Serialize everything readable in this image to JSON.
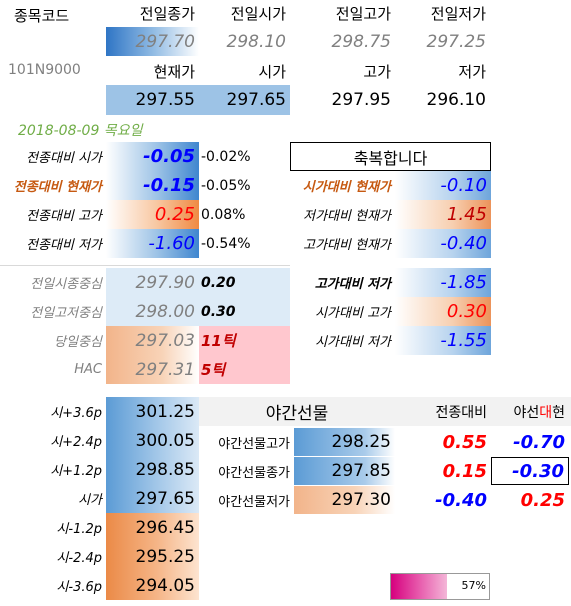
{
  "header": {
    "code_label": "종목코드",
    "code_value": "101N9000",
    "cols_prev": [
      "전일종가",
      "전일시가",
      "전일고가",
      "전일저가"
    ],
    "vals_prev": [
      "297.70",
      "298.10",
      "298.75",
      "297.25"
    ],
    "cols_now": [
      "현재가",
      "시가",
      "고가",
      "저가"
    ],
    "vals_now": [
      "297.55",
      "297.65",
      "297.95",
      "296.10"
    ]
  },
  "date_line": "2018-08-09  목요일",
  "left_stats": [
    {
      "label": "전종대비 시가",
      "value": "-0.05",
      "pct": "-0.02%"
    },
    {
      "label": "전종대비 현재가",
      "value": "-0.15",
      "pct": "-0.05%"
    },
    {
      "label": "전종대비 고가",
      "value": "0.25",
      "pct": "0.08%"
    },
    {
      "label": "전종대비 저가",
      "value": "-1.60",
      "pct": "-0.54%"
    }
  ],
  "greeting": "축복합니다",
  "right_stats": [
    {
      "label": "시가대비 현재가",
      "value": "-0.10"
    },
    {
      "label": "저가대비 현재가",
      "value": "1.45"
    },
    {
      "label": "고가대비 현재가",
      "value": "-0.40"
    },
    {
      "label": "고가대비 저가",
      "value": "-1.85"
    },
    {
      "label": "시가대비 고가",
      "value": "0.30"
    },
    {
      "label": "시가대비 저가",
      "value": "-1.55"
    }
  ],
  "mid_stats": [
    {
      "label": "전일시종중심",
      "value": "297.90",
      "extra": "0.20"
    },
    {
      "label": "전일고저중심",
      "value": "298.00",
      "extra": "0.30"
    },
    {
      "label": "당일중심",
      "value": "297.03",
      "extra": "11틱"
    },
    {
      "label": "HAC",
      "value": "297.31",
      "extra": "5틱"
    }
  ],
  "levels": [
    {
      "label": "시+3.6p",
      "value": "301.25"
    },
    {
      "label": "시+2.4p",
      "value": "300.05"
    },
    {
      "label": "시+1.2p",
      "value": "298.85"
    },
    {
      "label": "시가",
      "value": "297.65"
    },
    {
      "label": "시-1.2p",
      "value": "296.45"
    },
    {
      "label": "시-2.4p",
      "value": "295.25"
    },
    {
      "label": "시-3.6p",
      "value": "294.05"
    }
  ],
  "night": {
    "title": "야간선물",
    "col_a": "전종대비",
    "col_b_1": "야선",
    "col_b_2": "대",
    "col_b_3": "현",
    "rows": [
      {
        "label": "야간선물고가",
        "value": "298.25",
        "a": "0.55",
        "b": "-0.70"
      },
      {
        "label": "야간선물종가",
        "value": "297.85",
        "a": "0.15",
        "b": "-0.30"
      },
      {
        "label": "야간선물저가",
        "value": "297.30",
        "a": "-0.40",
        "b": "0.25"
      }
    ]
  },
  "progress": {
    "label": "57%",
    "fraction": 0.57
  }
}
